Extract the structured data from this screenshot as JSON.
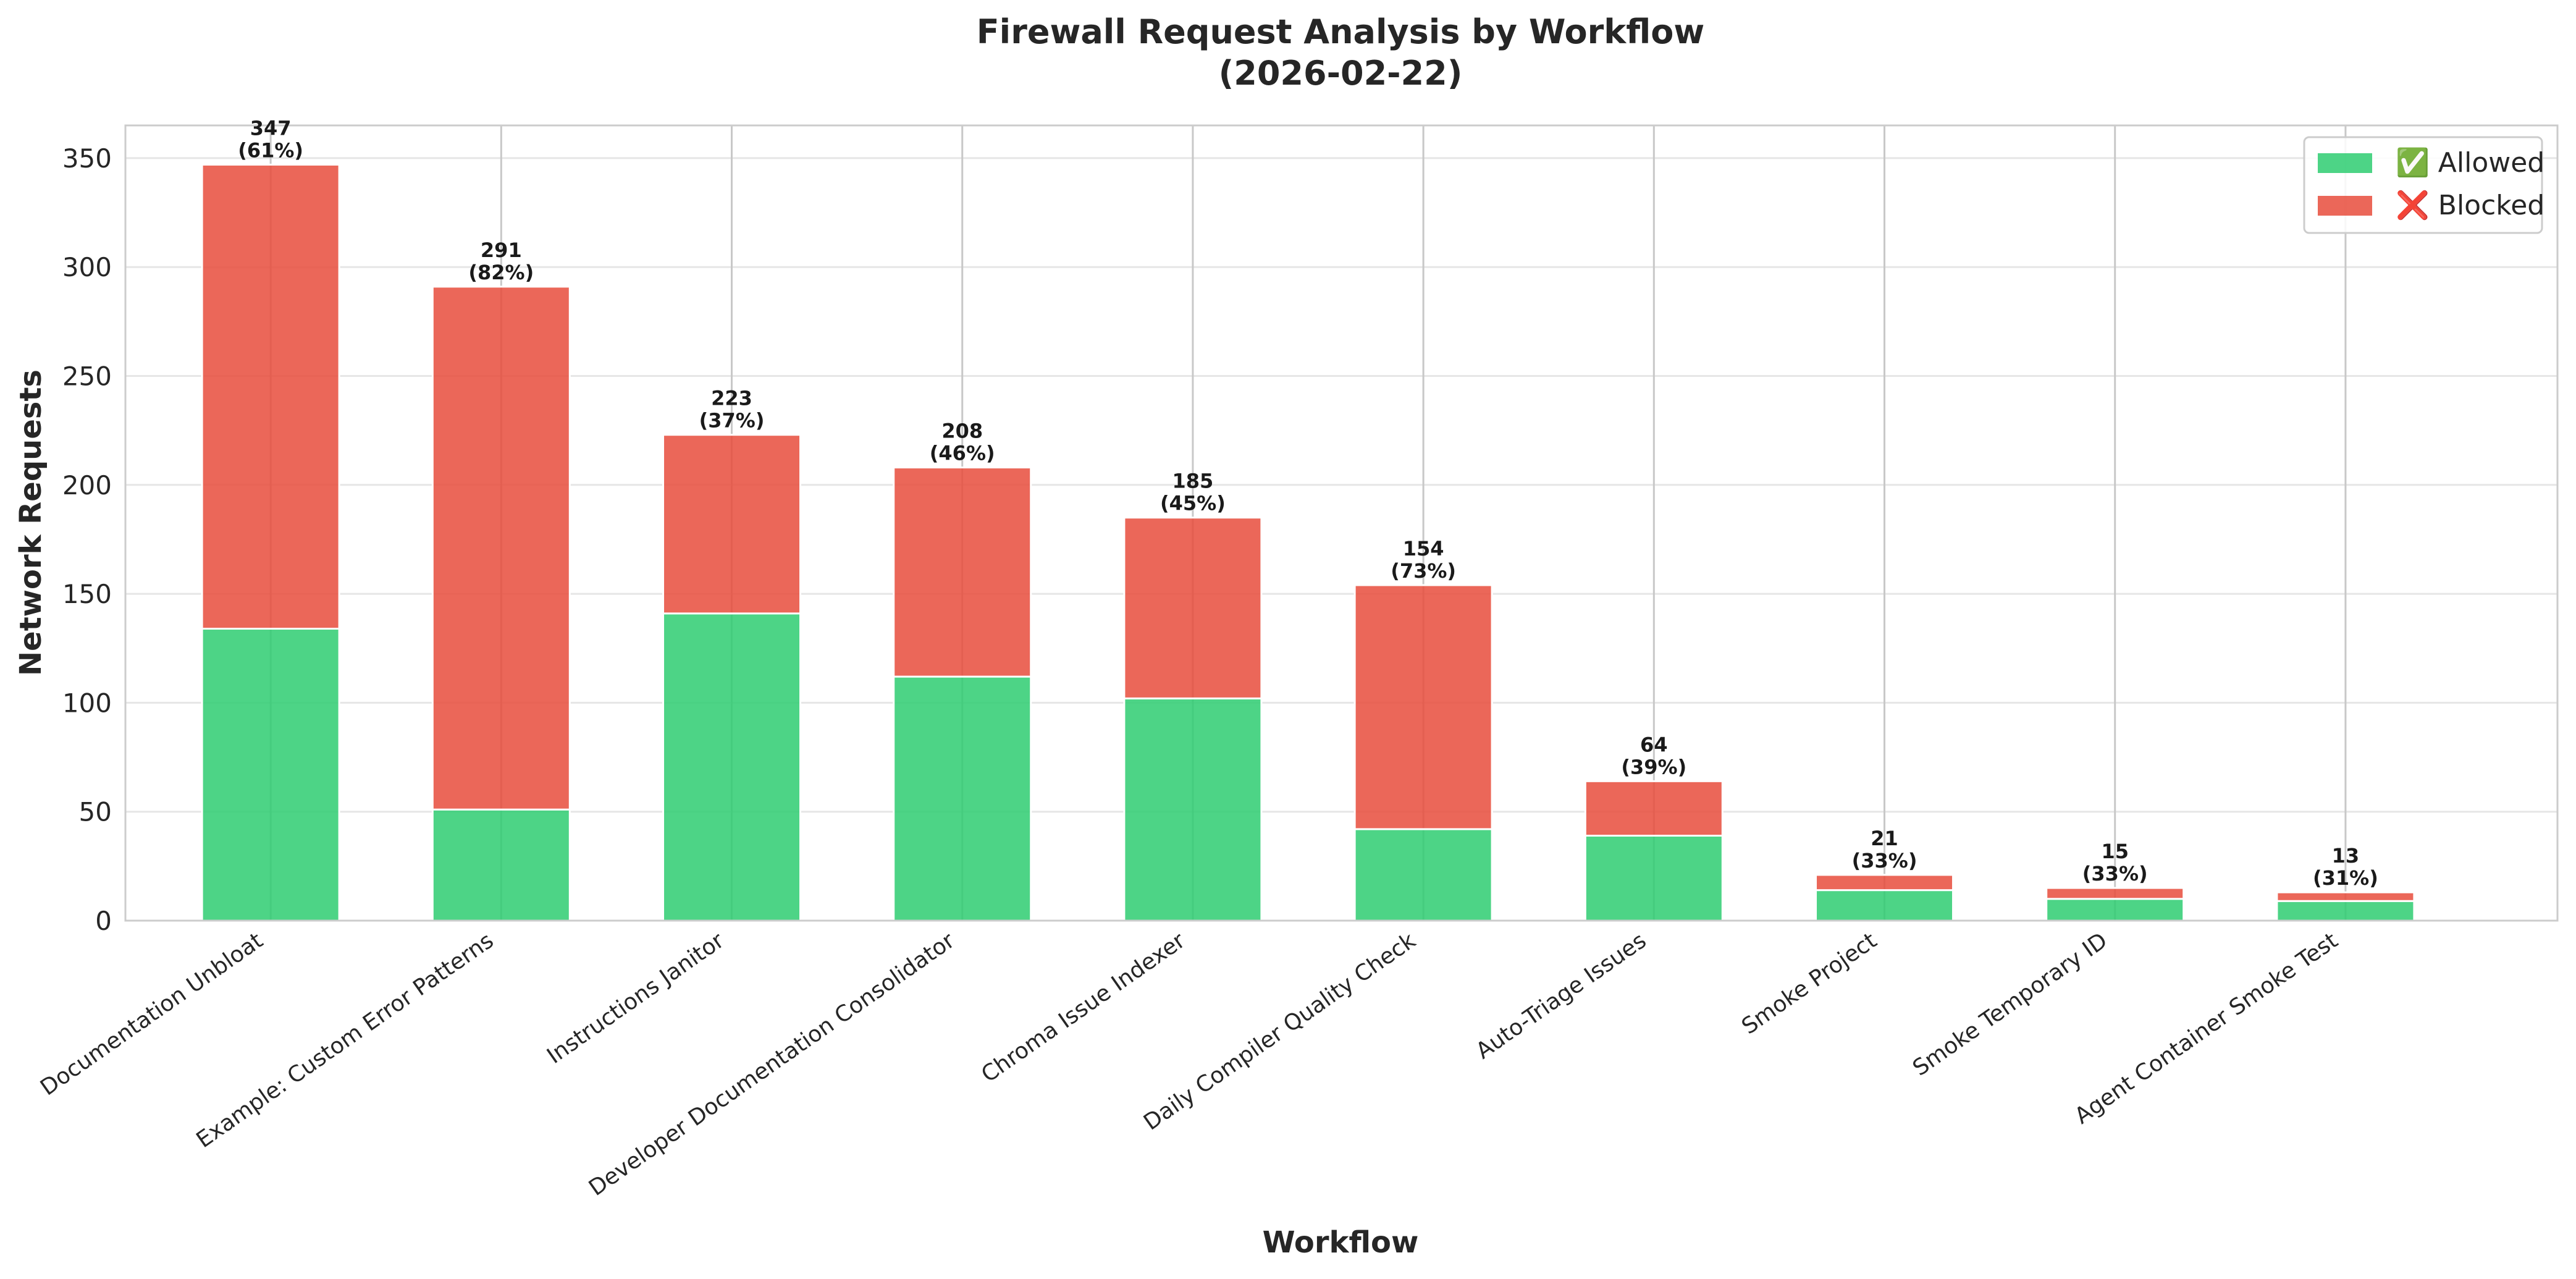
{
  "colors": {
    "allowed": "#2ecc71",
    "blocked": "#e74c3c",
    "grid": "#e6e6e6",
    "frame": "#cccccc",
    "text": "#262626"
  },
  "chart_data": {
    "type": "bar",
    "stacked": true,
    "title_line1": "Firewall Request Analysis by Workflow",
    "title_line2": "(2026-02-22)",
    "xlabel": "Workflow",
    "ylabel": "Network Requests",
    "ylim": [
      0,
      365
    ],
    "yticks": [
      0,
      50,
      100,
      150,
      200,
      250,
      300,
      350
    ],
    "grid": true,
    "legend_position": "top-right",
    "categories": [
      "Documentation Unbloat",
      "Example: Custom Error Patterns",
      "Instructions Janitor",
      "Developer Documentation Consolidator",
      "Chroma Issue Indexer",
      "Daily Compiler Quality Check",
      "Auto-Triage Issues",
      "Smoke Project",
      "Smoke Temporary ID",
      "Agent Container Smoke Test"
    ],
    "series": [
      {
        "name": "✅ Allowed",
        "key": "allowed",
        "values": [
          134,
          51,
          141,
          112,
          102,
          42,
          39,
          14,
          10,
          9
        ]
      },
      {
        "name": "❌ Blocked",
        "key": "blocked",
        "values": [
          213,
          240,
          82,
          96,
          83,
          112,
          25,
          7,
          5,
          4
        ]
      }
    ],
    "totals": [
      347,
      291,
      223,
      208,
      185,
      154,
      64,
      21,
      15,
      13
    ],
    "total_labels": [
      "347",
      "291",
      "223",
      "208",
      "185",
      "154",
      "64",
      "21",
      "15",
      "13"
    ],
    "percent_labels": [
      "(61%)",
      "(82%)",
      "(37%)",
      "(46%)",
      "(45%)",
      "(73%)",
      "(39%)",
      "(33%)",
      "(33%)",
      "(31%)"
    ]
  }
}
